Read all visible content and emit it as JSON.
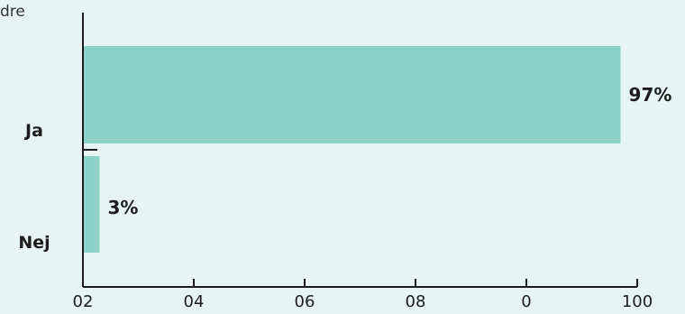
{
  "partial_text": "dre",
  "chart_data": {
    "type": "bar",
    "orientation": "horizontal",
    "title": "",
    "xlabel": "",
    "ylabel": "",
    "categories": [
      "Ja",
      "Nej"
    ],
    "values": [
      97,
      3
    ],
    "value_labels": [
      "97%",
      "3%"
    ],
    "xlim": [
      0,
      100
    ],
    "x_ticks": [
      0,
      20,
      40,
      60,
      80,
      100
    ],
    "x_tick_labels": [
      "02",
      "04",
      "06",
      "08",
      "0",
      "100"
    ],
    "grid": false,
    "legend": "none",
    "bar_color": "#8cd2c8",
    "axis_color": "#1c1c1c",
    "background": "#e6f4f4"
  }
}
